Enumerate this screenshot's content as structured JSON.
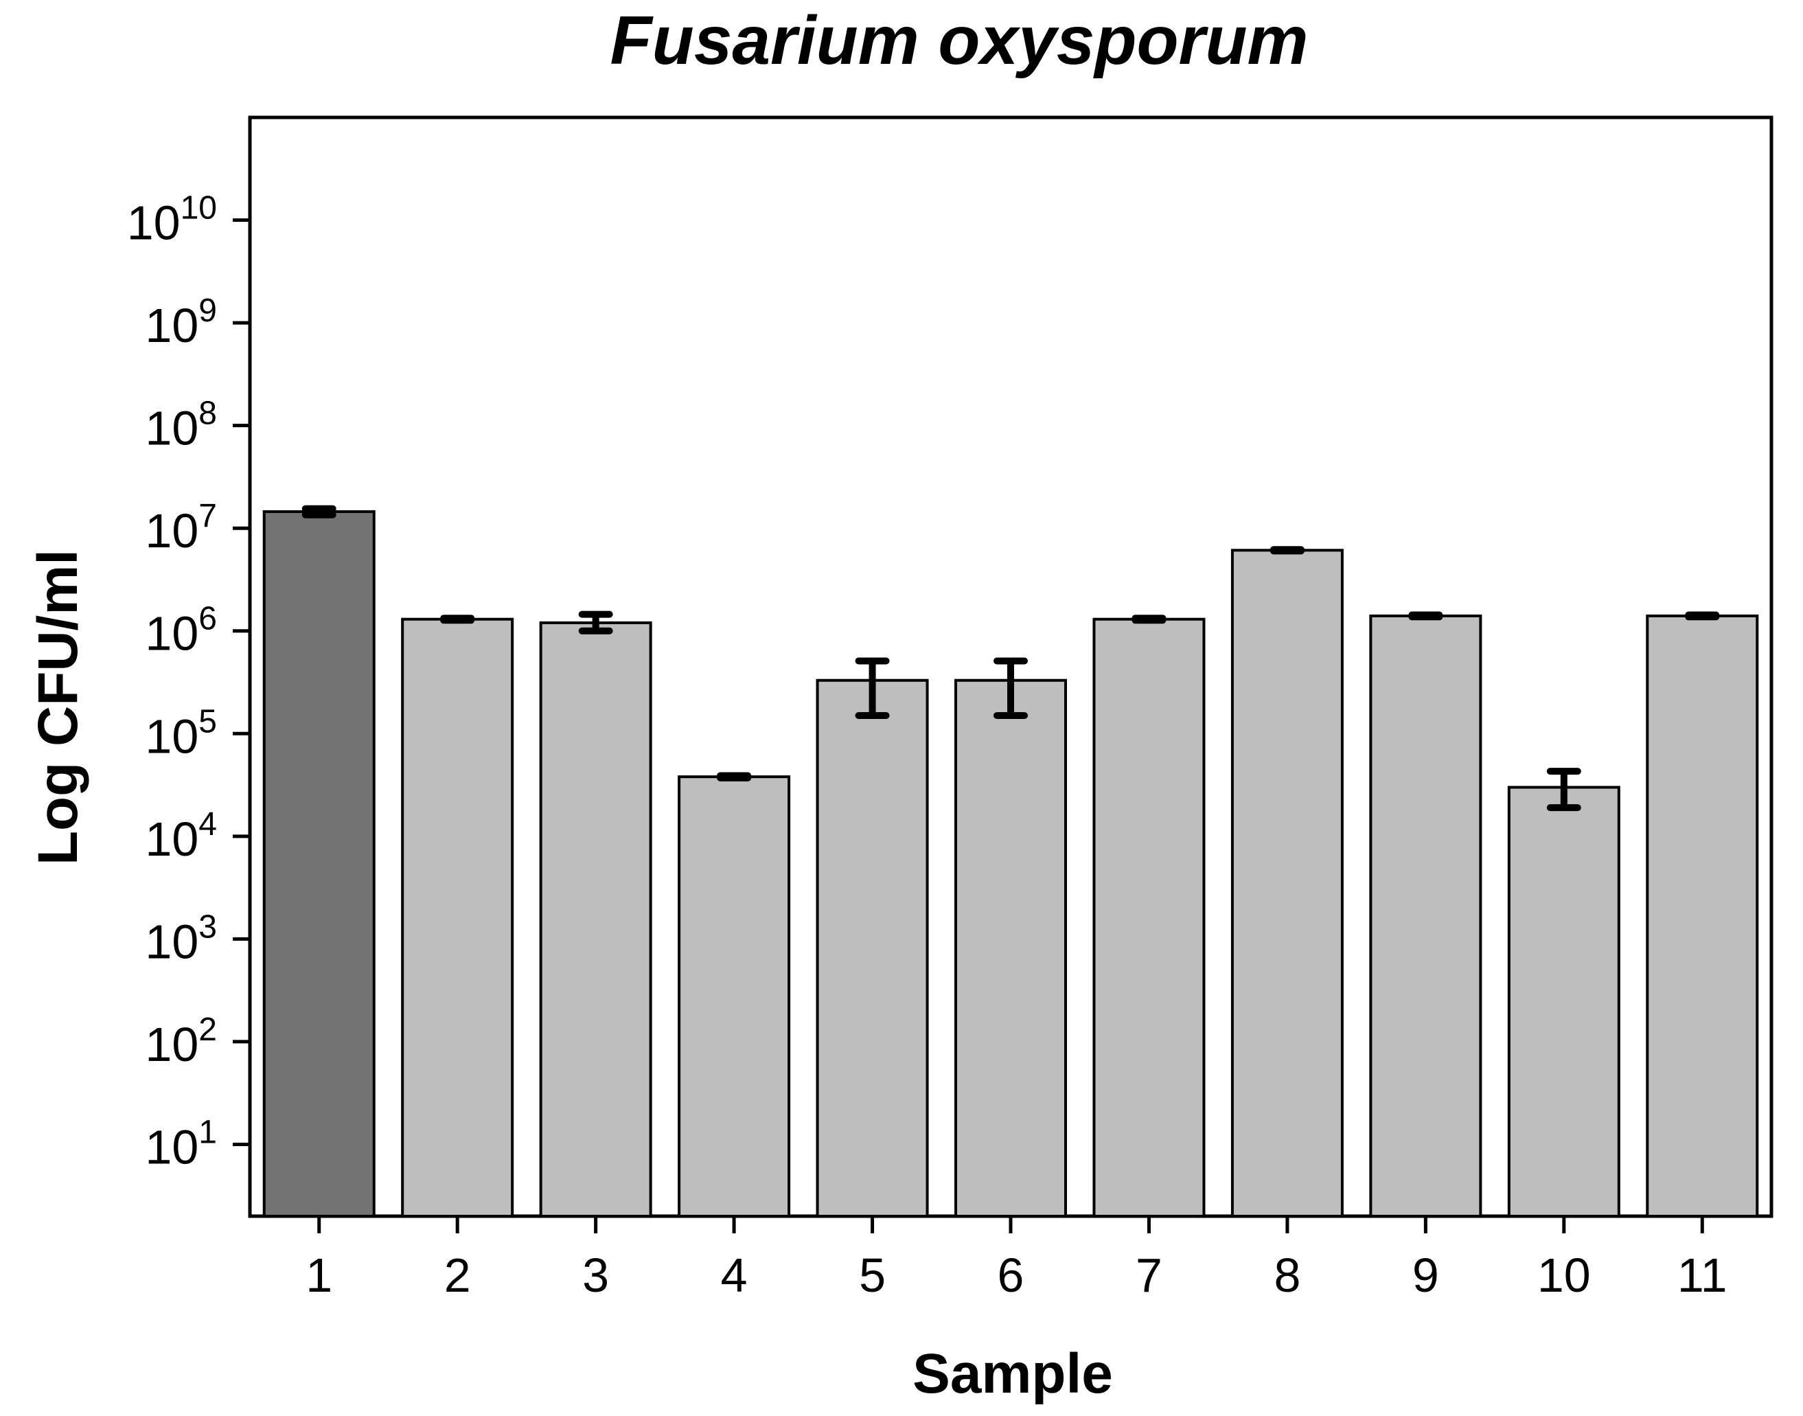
{
  "chart_data": {
    "type": "bar",
    "title": "Fusarium oxysporum",
    "xlabel": "Sample",
    "ylabel": "Log CFU/ml",
    "y_scale": "log",
    "ylim": [
      2,
      100000000000
    ],
    "y_tick_exponents": [
      "1",
      "2",
      "3",
      "4",
      "5",
      "6",
      "7",
      "8",
      "9",
      "10"
    ],
    "y_tick_base": "10",
    "categories": [
      "1",
      "2",
      "3",
      "4",
      "5",
      "6",
      "7",
      "8",
      "9",
      "10",
      "11"
    ],
    "values": [
      14500000,
      1300000,
      1200000,
      38000,
      330000,
      330000,
      1300000,
      6100000,
      1400000,
      30000,
      1400000
    ],
    "error_low": [
      13500000,
      1270000,
      1000000,
      37000,
      150000,
      150000,
      1270000,
      6000000,
      1370000,
      19000,
      1370000
    ],
    "error_high": [
      15500000,
      1330000,
      1450000,
      39000,
      510000,
      510000,
      1330000,
      6200000,
      1430000,
      43000,
      1430000
    ],
    "bar_colors": [
      "#737373",
      "#bebebe",
      "#bebebe",
      "#bebebe",
      "#bebebe",
      "#bebebe",
      "#bebebe",
      "#bebebe",
      "#bebebe",
      "#bebebe",
      "#bebebe"
    ],
    "grid": false,
    "legend": "none"
  }
}
